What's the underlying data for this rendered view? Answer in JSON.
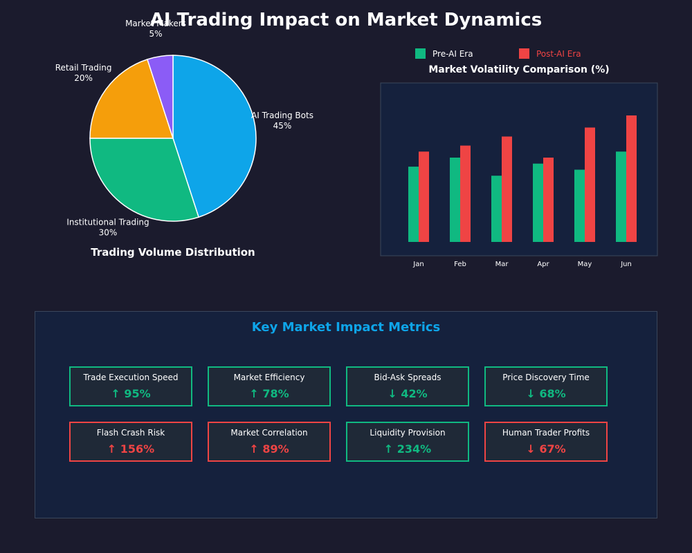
{
  "title": "AI Trading Impact on Market Dynamics",
  "colors": {
    "background": "#1b1b2d",
    "ai_bots": "#0ea5e9",
    "institutional": "#10b981",
    "retail": "#f59e0b",
    "market_makers": "#8b5cf6",
    "pre_ai": "#10b981",
    "post_ai": "#ef4444",
    "panel": "#15213d"
  },
  "chart_data": [
    {
      "type": "pie",
      "title": "Trading Volume Distribution",
      "slices": [
        {
          "label": "AI Trading Bots",
          "value": 45,
          "value_label": "45%"
        },
        {
          "label": "Institutional Trading",
          "value": 30,
          "value_label": "30%"
        },
        {
          "label": "Retail Trading",
          "value": 20,
          "value_label": "20%"
        },
        {
          "label": "Market Makers",
          "value": 5,
          "value_label": "5%"
        }
      ]
    },
    {
      "type": "bar",
      "title": "Market Volatility Comparison (%)",
      "categories": [
        "Jan",
        "Feb",
        "Mar",
        "Apr",
        "May",
        "Jun"
      ],
      "series": [
        {
          "name": "Pre-AI Era",
          "values": [
            12.5,
            14,
            11,
            13,
            12,
            15
          ]
        },
        {
          "name": "Post-AI Era",
          "values": [
            15,
            16,
            17.5,
            14,
            19,
            21
          ]
        }
      ],
      "ylim": [
        0,
        26.4
      ],
      "legend_position": "top"
    }
  ],
  "metrics": {
    "title": "Key Market Impact Metrics",
    "items": [
      {
        "label": "Trade Execution Speed",
        "value": "↑ 95%",
        "status": "positive"
      },
      {
        "label": "Market Efficiency",
        "value": "↑ 78%",
        "status": "positive"
      },
      {
        "label": "Bid-Ask Spreads",
        "value": "↓ 42%",
        "status": "positive"
      },
      {
        "label": "Price Discovery Time",
        "value": "↓ 68%",
        "status": "positive"
      },
      {
        "label": "Flash Crash Risk",
        "value": "↑ 156%",
        "status": "negative"
      },
      {
        "label": "Market Correlation",
        "value": "↑ 89%",
        "status": "negative"
      },
      {
        "label": "Liquidity Provision",
        "value": "↑ 234%",
        "status": "positive"
      },
      {
        "label": "Human Trader Profits",
        "value": "↓ 67%",
        "status": "negative"
      }
    ]
  }
}
